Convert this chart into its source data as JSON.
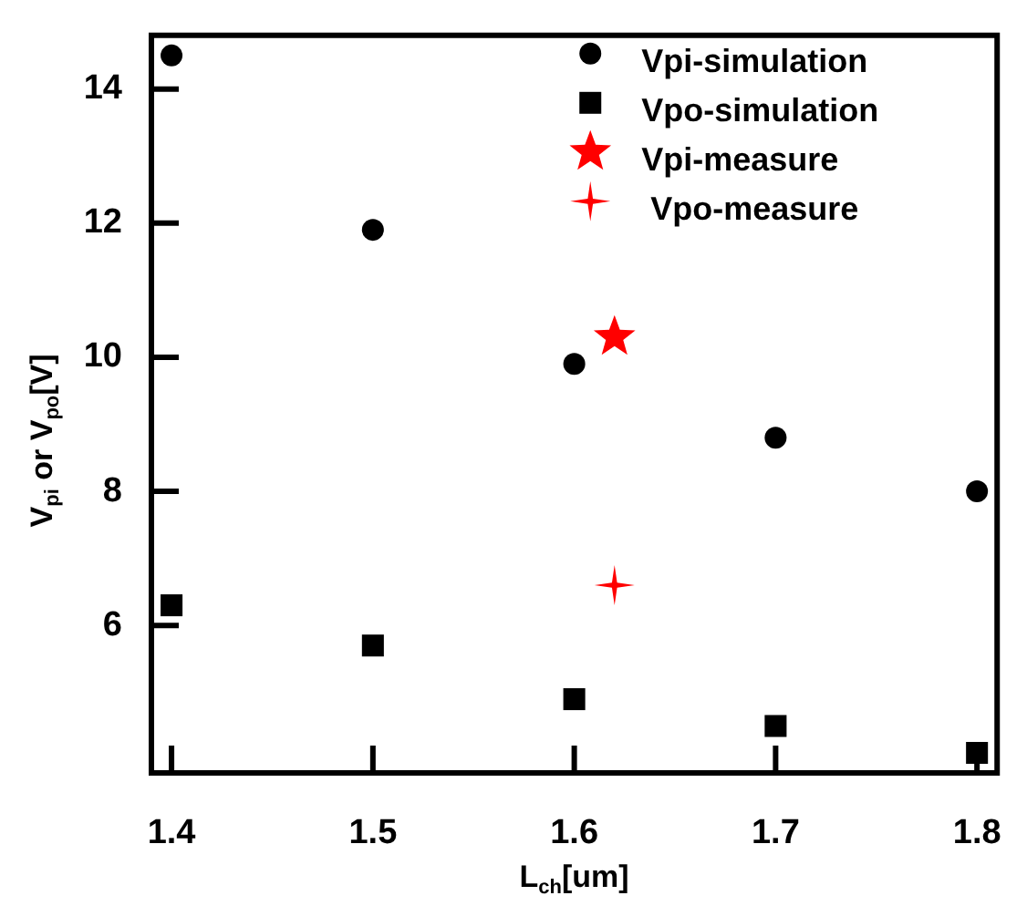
{
  "chart_data": {
    "type": "scatter",
    "xlabel": "L$_{ch}$[um]",
    "ylabel": "V$_{pi}$ or V$_{po}$[V]",
    "xlim": [
      1.39,
      1.81
    ],
    "ylim": [
      3.8,
      14.8
    ],
    "xticks": [
      1.4,
      1.5,
      1.6,
      1.7,
      1.8
    ],
    "yticks": [
      6,
      8,
      10,
      12,
      14
    ],
    "grid": false,
    "legend": "top right",
    "series": [
      {
        "name": "Vpi-simulation",
        "color": "#000000",
        "marker": "circle",
        "x": [
          1.4,
          1.5,
          1.6,
          1.7,
          1.8
        ],
        "values": [
          14.5,
          11.9,
          9.9,
          8.8,
          8.0
        ]
      },
      {
        "name": "Vpo-simulation",
        "color": "#000000",
        "marker": "square",
        "x": [
          1.4,
          1.5,
          1.6,
          1.7,
          1.8
        ],
        "values": [
          6.3,
          5.7,
          4.9,
          4.5,
          4.1
        ]
      },
      {
        "name": "Vpi-measure",
        "color": "#ff0000",
        "marker": "star",
        "x": [
          1.62
        ],
        "values": [
          10.3
        ]
      },
      {
        "name": "Vpo-measure",
        "color": "#ff0000",
        "marker": "cross",
        "x": [
          1.62
        ],
        "values": [
          6.6
        ]
      }
    ]
  }
}
